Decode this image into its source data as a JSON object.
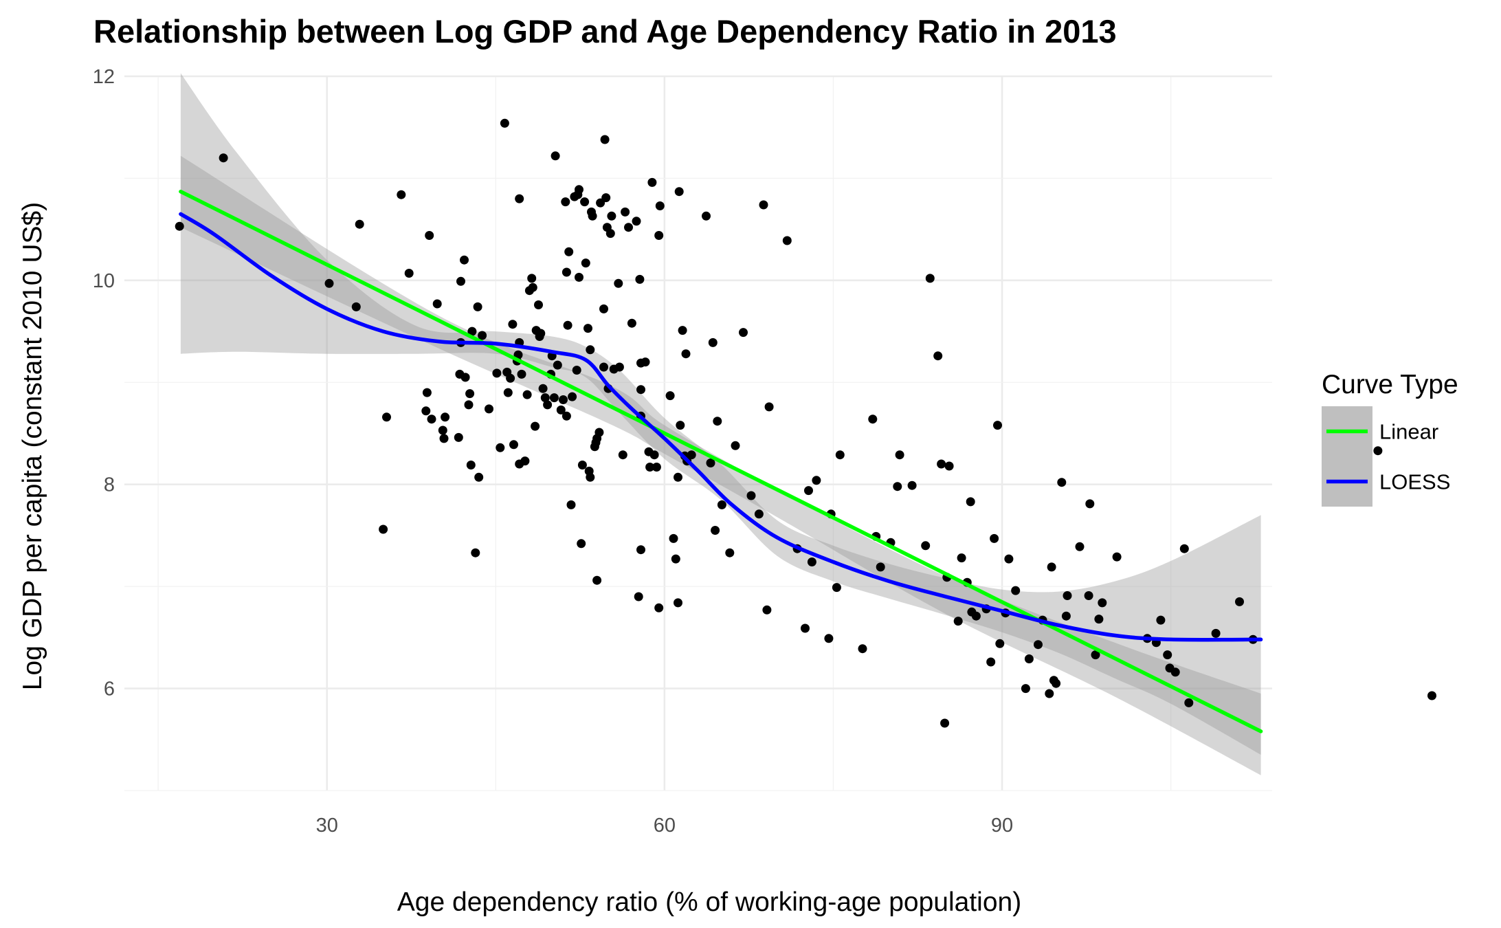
{
  "chart_data": {
    "type": "scatter",
    "title": "Relationship between Log GDP and Age Dependency Ratio in 2013",
    "xlabel": "Age dependency ratio (% of working-age population)",
    "ylabel": "Log GDP per capita (constant 2010 US$)",
    "xlim": [
      12,
      114
    ],
    "ylim": [
      5,
      12
    ],
    "x_ticks": [
      30,
      60,
      90
    ],
    "y_ticks": [
      6,
      8,
      10,
      12
    ],
    "grid": true,
    "legend": {
      "title": "Curve Type",
      "position": "right",
      "entries": [
        {
          "label": "Linear",
          "color": "#00ff00"
        },
        {
          "label": "LOESS",
          "color": "#0000ff"
        }
      ]
    },
    "points": [
      [
        16.9,
        10.53
      ],
      [
        20.8,
        11.2
      ],
      [
        30.2,
        9.97
      ],
      [
        32.6,
        9.74
      ],
      [
        32.9,
        10.55
      ],
      [
        35.0,
        7.56
      ],
      [
        35.3,
        8.66
      ],
      [
        36.6,
        10.84
      ],
      [
        37.3,
        10.07
      ],
      [
        38.8,
        8.72
      ],
      [
        38.9,
        8.9
      ],
      [
        39.1,
        10.44
      ],
      [
        39.3,
        8.64
      ],
      [
        39.8,
        9.77
      ],
      [
        40.3,
        8.53
      ],
      [
        40.4,
        8.45
      ],
      [
        40.5,
        8.66
      ],
      [
        41.7,
        8.46
      ],
      [
        41.8,
        9.08
      ],
      [
        41.9,
        9.39
      ],
      [
        41.9,
        9.99
      ],
      [
        42.2,
        10.2
      ],
      [
        42.3,
        9.05
      ],
      [
        42.6,
        8.78
      ],
      [
        42.7,
        8.89
      ],
      [
        42.8,
        8.19
      ],
      [
        42.9,
        9.5
      ],
      [
        43.2,
        7.33
      ],
      [
        43.4,
        9.74
      ],
      [
        43.5,
        8.07
      ],
      [
        43.8,
        9.46
      ],
      [
        44.4,
        8.74
      ],
      [
        45.1,
        9.09
      ],
      [
        45.4,
        8.36
      ],
      [
        45.8,
        11.54
      ],
      [
        46.0,
        9.1
      ],
      [
        46.1,
        8.9
      ],
      [
        46.3,
        9.04
      ],
      [
        46.5,
        9.57
      ],
      [
        46.6,
        8.39
      ],
      [
        46.9,
        9.21
      ],
      [
        47.0,
        9.27
      ],
      [
        47.1,
        8.2
      ],
      [
        47.1,
        10.8
      ],
      [
        47.1,
        9.39
      ],
      [
        47.3,
        9.08
      ],
      [
        47.6,
        8.23
      ],
      [
        47.8,
        8.88
      ],
      [
        48.0,
        9.9
      ],
      [
        48.2,
        10.02
      ],
      [
        48.3,
        9.93
      ],
      [
        48.5,
        8.57
      ],
      [
        48.6,
        9.51
      ],
      [
        48.8,
        9.76
      ],
      [
        48.9,
        9.45
      ],
      [
        49.0,
        9.48
      ],
      [
        49.2,
        8.94
      ],
      [
        49.4,
        8.85
      ],
      [
        49.6,
        8.78
      ],
      [
        49.9,
        9.08
      ],
      [
        50.0,
        9.26
      ],
      [
        50.2,
        8.85
      ],
      [
        50.3,
        11.22
      ],
      [
        50.5,
        9.17
      ],
      [
        50.8,
        8.73
      ],
      [
        51.0,
        8.83
      ],
      [
        51.2,
        10.77
      ],
      [
        51.3,
        10.08
      ],
      [
        51.3,
        8.67
      ],
      [
        51.4,
        9.56
      ],
      [
        51.5,
        10.28
      ],
      [
        51.7,
        7.8
      ],
      [
        51.8,
        8.86
      ],
      [
        52.0,
        10.82
      ],
      [
        52.2,
        9.12
      ],
      [
        52.3,
        10.84
      ],
      [
        52.4,
        10.89
      ],
      [
        52.4,
        10.03
      ],
      [
        52.6,
        7.42
      ],
      [
        52.7,
        8.19
      ],
      [
        52.9,
        10.77
      ],
      [
        53.0,
        10.17
      ],
      [
        53.2,
        9.53
      ],
      [
        53.3,
        8.13
      ],
      [
        53.4,
        8.07
      ],
      [
        53.4,
        9.32
      ],
      [
        53.5,
        10.67
      ],
      [
        53.6,
        10.63
      ],
      [
        53.8,
        8.37
      ],
      [
        53.9,
        8.41
      ],
      [
        54.0,
        7.06
      ],
      [
        54.0,
        8.45
      ],
      [
        54.2,
        8.51
      ],
      [
        54.3,
        10.76
      ],
      [
        54.6,
        9.72
      ],
      [
        54.6,
        9.15
      ],
      [
        54.7,
        11.38
      ],
      [
        54.8,
        10.81
      ],
      [
        54.9,
        10.52
      ],
      [
        55.0,
        8.94
      ],
      [
        55.2,
        10.46
      ],
      [
        55.3,
        10.63
      ],
      [
        55.5,
        9.13
      ],
      [
        55.9,
        9.97
      ],
      [
        56.0,
        9.15
      ],
      [
        56.3,
        8.29
      ],
      [
        56.5,
        10.67
      ],
      [
        56.8,
        10.52
      ],
      [
        57.1,
        9.58
      ],
      [
        57.5,
        10.58
      ],
      [
        57.7,
        6.9
      ],
      [
        57.8,
        10.01
      ],
      [
        57.9,
        8.67
      ],
      [
        57.9,
        7.36
      ],
      [
        57.9,
        9.19
      ],
      [
        57.9,
        8.93
      ],
      [
        58.3,
        9.2
      ],
      [
        58.6,
        8.32
      ],
      [
        58.7,
        8.17
      ],
      [
        58.9,
        10.96
      ],
      [
        59.1,
        8.29
      ],
      [
        59.3,
        8.17
      ],
      [
        59.5,
        10.44
      ],
      [
        59.5,
        6.79
      ],
      [
        59.6,
        10.73
      ],
      [
        60.5,
        8.87
      ],
      [
        60.8,
        7.47
      ],
      [
        61.0,
        7.27
      ],
      [
        61.2,
        6.84
      ],
      [
        61.2,
        8.07
      ],
      [
        61.3,
        10.87
      ],
      [
        61.4,
        8.58
      ],
      [
        61.6,
        9.51
      ],
      [
        61.8,
        8.28
      ],
      [
        61.9,
        9.28
      ],
      [
        62.0,
        8.23
      ],
      [
        62.4,
        8.29
      ],
      [
        63.7,
        10.63
      ],
      [
        64.1,
        8.21
      ],
      [
        64.3,
        9.39
      ],
      [
        64.5,
        7.55
      ],
      [
        64.7,
        8.62
      ],
      [
        65.1,
        7.8
      ],
      [
        65.8,
        7.33
      ],
      [
        66.3,
        8.38
      ],
      [
        67.0,
        9.49
      ],
      [
        67.7,
        7.89
      ],
      [
        68.4,
        7.71
      ],
      [
        68.8,
        10.74
      ],
      [
        69.1,
        6.77
      ],
      [
        69.3,
        8.76
      ],
      [
        70.9,
        10.39
      ],
      [
        71.8,
        7.37
      ],
      [
        72.5,
        6.59
      ],
      [
        72.8,
        7.94
      ],
      [
        73.1,
        7.24
      ],
      [
        73.5,
        8.04
      ],
      [
        74.6,
        6.49
      ],
      [
        74.8,
        7.71
      ],
      [
        75.3,
        6.99
      ],
      [
        75.6,
        8.29
      ],
      [
        77.6,
        6.39
      ],
      [
        78.5,
        8.64
      ],
      [
        78.8,
        7.49
      ],
      [
        79.2,
        7.19
      ],
      [
        80.1,
        7.43
      ],
      [
        80.7,
        7.98
      ],
      [
        80.9,
        8.29
      ],
      [
        82.0,
        7.99
      ],
      [
        83.2,
        7.4
      ],
      [
        83.6,
        10.02
      ],
      [
        84.3,
        9.26
      ],
      [
        84.6,
        8.2
      ],
      [
        84.9,
        5.66
      ],
      [
        85.1,
        7.09
      ],
      [
        85.3,
        8.18
      ],
      [
        86.1,
        6.66
      ],
      [
        86.4,
        7.28
      ],
      [
        86.9,
        7.04
      ],
      [
        87.2,
        7.83
      ],
      [
        87.3,
        6.75
      ],
      [
        87.7,
        6.71
      ],
      [
        88.6,
        6.78
      ],
      [
        89.0,
        6.26
      ],
      [
        89.3,
        7.47
      ],
      [
        89.6,
        8.58
      ],
      [
        89.8,
        6.44
      ],
      [
        90.3,
        6.74
      ],
      [
        90.6,
        7.27
      ],
      [
        91.2,
        6.96
      ],
      [
        92.1,
        6.0
      ],
      [
        92.4,
        6.29
      ],
      [
        93.2,
        6.43
      ],
      [
        93.6,
        6.67
      ],
      [
        94.2,
        5.95
      ],
      [
        94.4,
        7.19
      ],
      [
        94.6,
        6.08
      ],
      [
        94.8,
        6.05
      ],
      [
        95.3,
        8.02
      ],
      [
        95.7,
        6.71
      ],
      [
        95.8,
        6.91
      ],
      [
        96.9,
        7.39
      ],
      [
        97.7,
        6.91
      ],
      [
        97.8,
        7.81
      ],
      [
        98.3,
        6.33
      ],
      [
        98.6,
        6.68
      ],
      [
        98.9,
        6.84
      ],
      [
        100.2,
        7.29
      ],
      [
        102.9,
        6.49
      ],
      [
        103.7,
        6.45
      ],
      [
        104.1,
        6.67
      ],
      [
        104.7,
        6.33
      ],
      [
        104.9,
        6.2
      ],
      [
        105.4,
        6.16
      ],
      [
        106.2,
        7.37
      ],
      [
        106.6,
        5.86
      ],
      [
        109.0,
        6.54
      ],
      [
        111.1,
        6.85
      ],
      [
        112.3,
        6.48
      ],
      [
        123.4,
        8.33
      ],
      [
        128.2,
        5.93
      ]
    ],
    "series": [
      {
        "name": "Linear",
        "color": "#00ff00",
        "x": [
          17.0,
          113.0
        ],
        "y": [
          10.87,
          5.58
        ],
        "ci_upper": [
          [
            17.0,
            11.22
          ],
          [
            40.0,
            9.65
          ],
          [
            55.0,
            8.98
          ],
          [
            60.0,
            8.58
          ],
          [
            70.0,
            7.95
          ],
          [
            85.0,
            7.1
          ],
          [
            100.0,
            6.45
          ],
          [
            113.0,
            5.95
          ]
        ],
        "ci_lower": [
          [
            17.0,
            10.52
          ],
          [
            40.0,
            9.33
          ],
          [
            55.0,
            8.6
          ],
          [
            60.0,
            8.3
          ],
          [
            70.0,
            7.68
          ],
          [
            85.0,
            6.73
          ],
          [
            100.0,
            5.92
          ],
          [
            113.0,
            5.15
          ]
        ]
      },
      {
        "name": "LOESS",
        "color": "#0000ff",
        "x": [
          17.0,
          20.0,
          25.0,
          30.0,
          35.0,
          40.0,
          45.0,
          50.0,
          53.0,
          55.0,
          57.0,
          60.0,
          63.0,
          66.0,
          70.0,
          75.0,
          80.0,
          85.0,
          90.0,
          95.0,
          100.0,
          105.0,
          113.0
        ],
        "y": [
          10.65,
          10.45,
          10.05,
          9.72,
          9.5,
          9.4,
          9.38,
          9.3,
          9.22,
          8.97,
          8.75,
          8.45,
          8.13,
          7.8,
          7.48,
          7.24,
          7.05,
          6.9,
          6.76,
          6.62,
          6.52,
          6.48,
          6.48
        ],
        "ci_upper": [
          [
            17.0,
            12.03
          ],
          [
            22.0,
            11.25
          ],
          [
            30.0,
            10.2
          ],
          [
            38.0,
            9.55
          ],
          [
            45.0,
            9.5
          ],
          [
            50.0,
            9.45
          ],
          [
            53.0,
            9.35
          ],
          [
            56.0,
            9.12
          ],
          [
            60.0,
            8.65
          ],
          [
            65.0,
            8.2
          ],
          [
            70.0,
            7.65
          ],
          [
            75.0,
            7.4
          ],
          [
            80.0,
            7.22
          ],
          [
            85.0,
            7.08
          ],
          [
            90.0,
            6.97
          ],
          [
            95.0,
            6.95
          ],
          [
            100.0,
            7.05
          ],
          [
            105.0,
            7.25
          ],
          [
            113.0,
            7.7
          ]
        ],
        "ci_lower": [
          [
            17.0,
            9.28
          ],
          [
            22.0,
            9.3
          ],
          [
            30.0,
            9.28
          ],
          [
            38.0,
            9.28
          ],
          [
            45.0,
            9.28
          ],
          [
            50.0,
            9.15
          ],
          [
            53.0,
            9.05
          ],
          [
            56.0,
            8.7
          ],
          [
            60.0,
            8.25
          ],
          [
            65.0,
            7.85
          ],
          [
            70.0,
            7.3
          ],
          [
            75.0,
            7.05
          ],
          [
            80.0,
            6.88
          ],
          [
            85.0,
            6.72
          ],
          [
            90.0,
            6.55
          ],
          [
            95.0,
            6.35
          ],
          [
            100.0,
            6.1
          ],
          [
            105.0,
            5.85
          ],
          [
            113.0,
            5.35
          ]
        ]
      }
    ]
  }
}
